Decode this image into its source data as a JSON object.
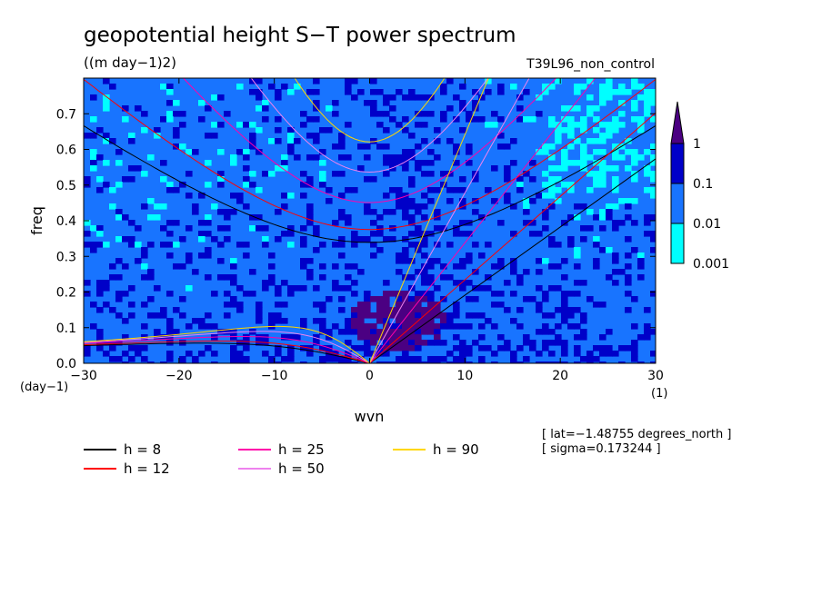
{
  "chart_data": {
    "type": "heatmap",
    "title": "geopotential height S−T power spectrum",
    "units": "((m day−1)2)",
    "run_label": "T39L96_non_control",
    "xlabel": "wvn",
    "ylabel": "freq",
    "x_unit": "(1)",
    "y_unit": "(day−1)",
    "xlim": [
      -30,
      30
    ],
    "ylim": [
      0,
      0.8
    ],
    "x_ticks": [
      -30,
      -20,
      -10,
      0,
      10,
      20,
      30
    ],
    "x_tick_labels": [
      "−30",
      "−20",
      "−10",
      "0",
      "10",
      "20",
      "30"
    ],
    "y_ticks": [
      0,
      0.1,
      0.2,
      0.3,
      0.4,
      0.5,
      0.6,
      0.7
    ],
    "y_tick_labels": [
      "0.0",
      "0.1",
      "0.2",
      "0.3",
      "0.4",
      "0.5",
      "0.6",
      "0.7"
    ],
    "colorbar": {
      "levels": [
        0.001,
        0.01,
        0.1,
        1
      ],
      "labels": [
        "0.001",
        "0.01",
        "0.1",
        "1"
      ],
      "colors": [
        "#00ffff",
        "#1874ff",
        "#0000c8",
        "#4b0082"
      ]
    },
    "dispersion_curves": [
      {
        "name": "h =  8",
        "h": 8,
        "color": "#000000"
      },
      {
        "name": "h = 12",
        "h": 12,
        "color": "#ff0000"
      },
      {
        "name": "h = 25",
        "h": 25,
        "color": "#ff00aa"
      },
      {
        "name": "h = 50",
        "h": 50,
        "color": "#ee82ee"
      },
      {
        "name": "h = 90",
        "h": 90,
        "color": "#ffd700"
      }
    ],
    "annotations": [
      "[ lat=−1.48755 degrees_north ]",
      "[ sigma=0.173244 ]"
    ]
  }
}
